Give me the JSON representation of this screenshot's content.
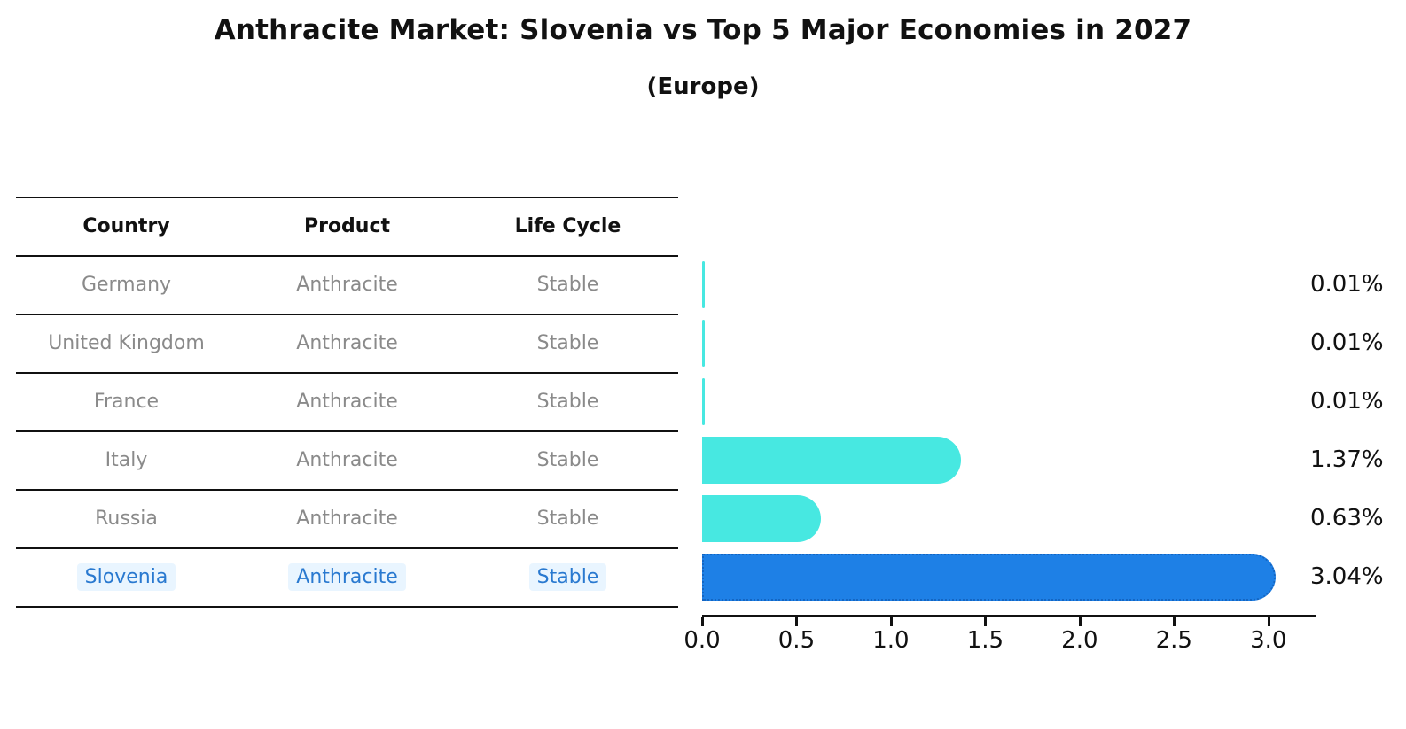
{
  "title": "Anthracite Market: Slovenia vs Top 5 Major Economies in 2027",
  "subtitle": "(Europe)",
  "table": {
    "headers": [
      "Country",
      "Product",
      "Life Cycle"
    ],
    "rows": [
      {
        "country": "Germany",
        "product": "Anthracite",
        "life_cycle": "Stable",
        "highlight": false
      },
      {
        "country": "United Kingdom",
        "product": "Anthracite",
        "life_cycle": "Stable",
        "highlight": false
      },
      {
        "country": "France",
        "product": "Anthracite",
        "life_cycle": "Stable",
        "highlight": false
      },
      {
        "country": "Italy",
        "product": "Anthracite",
        "life_cycle": "Stable",
        "highlight": false
      },
      {
        "country": "Russia",
        "product": "Anthracite",
        "life_cycle": "Stable",
        "highlight": false
      },
      {
        "country": "Slovenia",
        "product": "Anthracite",
        "life_cycle": "Stable",
        "highlight": true
      }
    ]
  },
  "chart_data": {
    "type": "bar",
    "orientation": "horizontal",
    "title": "Anthracite Market: Slovenia vs Top 5 Major Economies in 2027",
    "subtitle": "(Europe)",
    "categories": [
      "Germany",
      "United Kingdom",
      "France",
      "Italy",
      "Russia",
      "Slovenia"
    ],
    "values": [
      0.01,
      0.01,
      0.01,
      1.37,
      0.63,
      3.04
    ],
    "value_labels": [
      "0.01%",
      "0.01%",
      "0.01%",
      "1.37%",
      "0.63%",
      "3.04%"
    ],
    "highlight_category": "Slovenia",
    "xlabel": "",
    "ylabel": "",
    "xlim": [
      0,
      3.25
    ],
    "xticks": [
      0.0,
      0.5,
      1.0,
      1.5,
      2.0,
      2.5,
      3.0
    ],
    "xtick_labels": [
      "0.0",
      "0.5",
      "1.0",
      "1.5",
      "2.0",
      "2.5",
      "3.0"
    ],
    "grid": false,
    "legend": false,
    "colors": {
      "bar_default": "#47e8e1",
      "bar_highlight": "#1e80e6",
      "bar_highlight_border": "#1465c2",
      "highlight_text": "#2979d0",
      "row_text": "#8a8a8a",
      "axis_text": "#111111"
    }
  }
}
